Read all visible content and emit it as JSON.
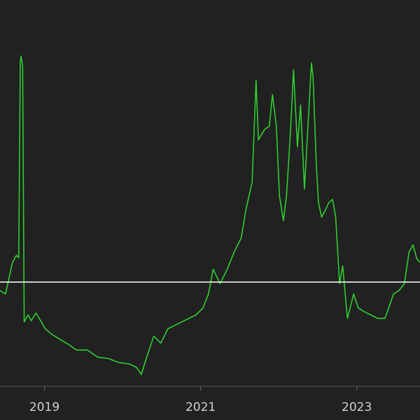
{
  "chart_data": {
    "type": "line",
    "x": [
      2018.43,
      2018.5,
      2018.53,
      2018.59,
      2018.64,
      2018.67,
      2018.69,
      2018.7,
      2018.72,
      2018.74,
      2018.79,
      2018.83,
      2018.89,
      2018.95,
      2019.01,
      2019.1,
      2019.23,
      2019.32,
      2019.41,
      2019.55,
      2019.68,
      2019.82,
      2019.95,
      2020.09,
      2020.18,
      2020.24,
      2020.31,
      2020.4,
      2020.49,
      2020.58,
      2020.67,
      2020.76,
      2020.85,
      2020.94,
      2021.03,
      2021.1,
      2021.16,
      2021.25,
      2021.34,
      2021.43,
      2021.52,
      2021.58,
      2021.66,
      2021.71,
      2021.74,
      2021.82,
      2021.88,
      2021.92,
      2021.97,
      2022.01,
      2022.06,
      2022.1,
      2022.15,
      2022.19,
      2022.24,
      2022.28,
      2022.33,
      2022.37,
      2022.42,
      2022.44,
      2022.48,
      2022.51,
      2022.55,
      2022.6,
      2022.64,
      2022.69,
      2022.73,
      2022.78,
      2022.82,
      2022.88,
      2022.96,
      2023.02,
      2023.09,
      2023.18,
      2023.27,
      2023.36,
      2023.41,
      2023.47,
      2023.54,
      2023.61,
      2023.67,
      2023.72,
      2023.77,
      2023.81
    ],
    "values": [
      24.8,
      23.9,
      26.6,
      32.1,
      33.9,
      33.3,
      83.7,
      85.5,
      82.8,
      16.7,
      18.5,
      17.0,
      19.0,
      17.0,
      14.9,
      13.4,
      11.8,
      10.7,
      9.4,
      9.4,
      7.6,
      7.2,
      6.2,
      5.8,
      4.9,
      3.1,
      7.6,
      13.0,
      11.2,
      14.9,
      15.8,
      16.7,
      17.6,
      18.5,
      20.3,
      23.9,
      30.3,
      26.6,
      30.3,
      34.8,
      38.4,
      45.7,
      52.9,
      79.2,
      63.8,
      66.5,
      67.4,
      75.5,
      67.4,
      49.3,
      42.9,
      49.3,
      65.6,
      81.9,
      62.0,
      72.8,
      51.1,
      65.6,
      83.7,
      80.1,
      58.3,
      47.5,
      43.8,
      45.7,
      47.5,
      48.4,
      43.8,
      26.6,
      31.2,
      17.6,
      23.9,
      20.3,
      19.4,
      18.5,
      17.6,
      17.6,
      20.3,
      23.9,
      24.8,
      26.6,
      34.8,
      36.6,
      33.0,
      32.1
    ],
    "color": "#2fcf2f",
    "xlim": [
      2018.43,
      2023.81
    ],
    "xticks": [
      2019,
      2021,
      2023
    ],
    "ylim": [
      0,
      100
    ],
    "reference_line": {
      "value": 27,
      "color": "#f2f2f2"
    }
  }
}
